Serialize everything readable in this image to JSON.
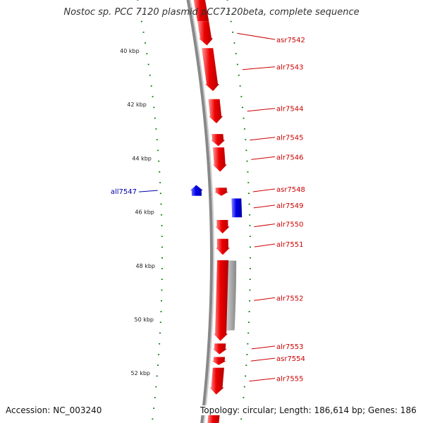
{
  "title": "Nostoc sp. PCC 7120 plasmid pCC7120beta, complete sequence",
  "footer": {
    "accession": "Accession: NC_003240",
    "topology": "Topology: circular; Length: 186,614 bp; Genes: 186"
  },
  "colors": {
    "forward_gene": "#ee0000",
    "reverse_gene": "#0000ee",
    "other_feature": "#bbbbbb",
    "backbone": "#888888",
    "tick": "#007700",
    "forward_label": "#cc0000",
    "reverse_label": "#0000aa"
  },
  "ruler": {
    "labels": [
      {
        "kbp": 40,
        "text": "40 kbp"
      },
      {
        "kbp": 42,
        "text": "42 kbp"
      },
      {
        "kbp": 44,
        "text": "44 kbp"
      },
      {
        "kbp": 46,
        "text": "46 kbp"
      },
      {
        "kbp": 48,
        "text": "48 kbp"
      },
      {
        "kbp": 50,
        "text": "50 kbp"
      },
      {
        "kbp": 52,
        "text": "52 kbp"
      }
    ]
  },
  "genes": [
    {
      "name": "asr7542",
      "start_kbp": 38.9,
      "end_kbp": 39.8,
      "strand": "forward"
    },
    {
      "name": "alr7543",
      "start_kbp": 39.9,
      "end_kbp": 41.5,
      "strand": "forward"
    },
    {
      "name": "alr7544",
      "start_kbp": 41.8,
      "end_kbp": 42.7,
      "strand": "forward"
    },
    {
      "name": "alr7545",
      "start_kbp": 43.1,
      "end_kbp": 43.55,
      "strand": "forward"
    },
    {
      "name": "alr7546",
      "start_kbp": 43.6,
      "end_kbp": 44.5,
      "strand": "forward"
    },
    {
      "name": "all7547",
      "start_kbp": 45.0,
      "end_kbp": 45.4,
      "strand": "reverse"
    },
    {
      "name": "asr7548",
      "start_kbp": 45.1,
      "end_kbp": 45.4,
      "strand": "forward"
    },
    {
      "name": "alr7549",
      "start_kbp": 45.5,
      "end_kbp": 46.2,
      "strand": "forward"
    },
    {
      "name": "alr7550",
      "start_kbp": 46.3,
      "end_kbp": 46.8,
      "strand": "forward"
    },
    {
      "name": "alr7551",
      "start_kbp": 47.0,
      "end_kbp": 47.6,
      "strand": "forward"
    },
    {
      "name": "alr7552",
      "start_kbp": 47.8,
      "end_kbp": 50.8,
      "strand": "forward"
    },
    {
      "name": "alr7553",
      "start_kbp": 50.9,
      "end_kbp": 51.3,
      "strand": "forward"
    },
    {
      "name": "asr7554",
      "start_kbp": 51.4,
      "end_kbp": 51.7,
      "strand": "forward"
    },
    {
      "name": "alr7555",
      "start_kbp": 51.8,
      "end_kbp": 52.8,
      "strand": "forward"
    }
  ]
}
